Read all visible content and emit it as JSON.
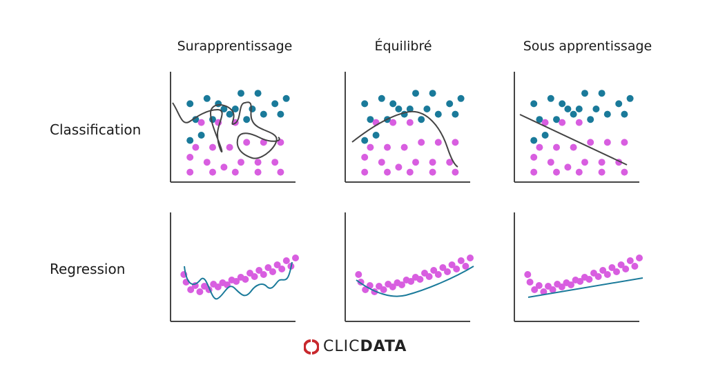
{
  "columns": [
    "Surapprentissage",
    "Équilibré",
    "Sous apprentissage"
  ],
  "rows": [
    "Classification",
    "Regression"
  ],
  "logo": {
    "part1": "CLIC",
    "part2": "DATA"
  },
  "colors": {
    "blue": "#1a7a9a",
    "pink": "#d85ee0",
    "axis": "#444444",
    "curve_dark": "#444444",
    "curve_teal": "#1a7a9a",
    "logo_red": "#c8282d"
  },
  "classification": {
    "blue_points": [
      [
        1,
        11
      ],
      [
        3,
        10
      ],
      [
        2,
        7
      ],
      [
        5,
        7
      ],
      [
        8,
        6
      ],
      [
        11,
        7
      ],
      [
        14,
        6
      ],
      [
        17,
        6
      ],
      [
        7,
        5
      ],
      [
        9,
        5
      ],
      [
        12,
        5
      ],
      [
        1,
        4
      ],
      [
        4,
        3
      ],
      [
        6,
        4
      ],
      [
        16,
        4
      ],
      [
        10,
        2
      ],
      [
        13,
        2
      ],
      [
        18,
        3
      ]
    ],
    "pink_points": [
      [
        3,
        8
      ],
      [
        6,
        8
      ],
      [
        9,
        8
      ],
      [
        2,
        13
      ],
      [
        5,
        13
      ],
      [
        8,
        13
      ],
      [
        11,
        12
      ],
      [
        14,
        12
      ],
      [
        17,
        12
      ],
      [
        1,
        15
      ],
      [
        4,
        16
      ],
      [
        7,
        17
      ],
      [
        10,
        16
      ],
      [
        13,
        16
      ],
      [
        16,
        16
      ],
      [
        1,
        18
      ],
      [
        5,
        18
      ],
      [
        9,
        18
      ],
      [
        13,
        18
      ],
      [
        17,
        18
      ]
    ]
  },
  "regression": {
    "points": [
      [
        1,
        82
      ],
      [
        2,
        93
      ],
      [
        4,
        104
      ],
      [
        6,
        98
      ],
      [
        8,
        107
      ],
      [
        10,
        99
      ],
      [
        12,
        104
      ],
      [
        14,
        96
      ],
      [
        16,
        100
      ],
      [
        18,
        94
      ],
      [
        20,
        97
      ],
      [
        22,
        90
      ],
      [
        24,
        92
      ],
      [
        26,
        86
      ],
      [
        28,
        89
      ],
      [
        30,
        80
      ],
      [
        32,
        85
      ],
      [
        34,
        76
      ],
      [
        36,
        82
      ],
      [
        38,
        72
      ],
      [
        40,
        78
      ],
      [
        42,
        68
      ],
      [
        44,
        74
      ],
      [
        46,
        62
      ],
      [
        48,
        70
      ],
      [
        50,
        58
      ]
    ]
  }
}
